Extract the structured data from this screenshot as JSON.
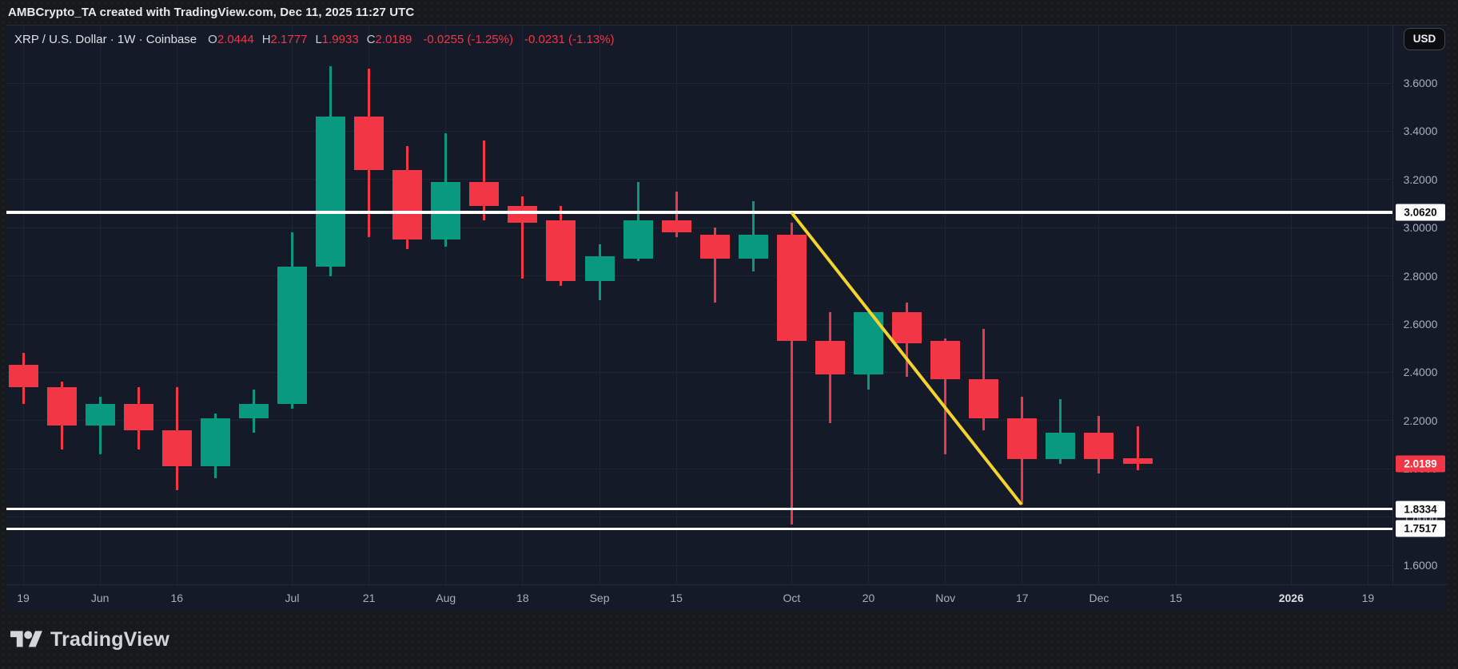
{
  "header": {
    "attribution": "AMBCrypto_TA created with TradingView.com, Dec 11, 2025 11:27 UTC"
  },
  "toolbar": {
    "currency_button": "USD"
  },
  "legend": {
    "symbol_title": "XRP / U.S. Dollar · 1W · Coinbase",
    "ohlc": [
      {
        "label": "O",
        "value": "2.0444"
      },
      {
        "label": "H",
        "value": "2.1777"
      },
      {
        "label": "L",
        "value": "1.9933"
      },
      {
        "label": "C",
        "value": "2.0189"
      }
    ],
    "change_1": "-0.0255 (-1.25%)",
    "change_2": "-0.0231 (-1.13%)"
  },
  "footer": {
    "brand": "TradingView"
  },
  "colors": {
    "up": "#089981",
    "down": "#f23645",
    "trendline": "#f5d32d",
    "price_line": "#ffffff",
    "last_price_bg": "#f23645",
    "chart_bg": "#141a28",
    "outer_bg": "#18191c"
  },
  "chart_data": {
    "type": "candlestick",
    "symbol": "XRP/USD",
    "timeframe": "1W",
    "exchange": "Coinbase",
    "price_axis": {
      "min": 1.6,
      "max": 3.6,
      "step": 0.2,
      "grid": true
    },
    "y_ticks": [
      {
        "label": "3.6000",
        "price": 3.6
      },
      {
        "label": "3.4000",
        "price": 3.4
      },
      {
        "label": "3.2000",
        "price": 3.2
      },
      {
        "label": "3.0000",
        "price": 3.0
      },
      {
        "label": "2.8000",
        "price": 2.8
      },
      {
        "label": "2.6000",
        "price": 2.6
      },
      {
        "label": "2.4000",
        "price": 2.4
      },
      {
        "label": "2.2000",
        "price": 2.2
      },
      {
        "label": "2.0000",
        "price": 2.0
      },
      {
        "label": "1.8000",
        "price": 1.8
      },
      {
        "label": "1.6000",
        "price": 1.6
      }
    ],
    "x_ticks": [
      {
        "label": "19",
        "week": 0,
        "major": false
      },
      {
        "label": "Jun",
        "week": 2,
        "major": false
      },
      {
        "label": "16",
        "week": 4,
        "major": false
      },
      {
        "label": "Jul",
        "week": 7,
        "major": false
      },
      {
        "label": "21",
        "week": 9,
        "major": false
      },
      {
        "label": "Aug",
        "week": 11,
        "major": false
      },
      {
        "label": "18",
        "week": 13,
        "major": false
      },
      {
        "label": "Sep",
        "week": 15,
        "major": false
      },
      {
        "label": "15",
        "week": 17,
        "major": false
      },
      {
        "label": "Oct",
        "week": 20,
        "major": false
      },
      {
        "label": "20",
        "week": 22,
        "major": false
      },
      {
        "label": "Nov",
        "week": 24,
        "major": false
      },
      {
        "label": "17",
        "week": 26,
        "major": false
      },
      {
        "label": "Dec",
        "week": 28,
        "major": false
      },
      {
        "label": "15",
        "week": 30,
        "major": false
      },
      {
        "label": "2026",
        "week": 33,
        "major": true
      },
      {
        "label": "19",
        "week": 35,
        "major": false
      }
    ],
    "candles": [
      {
        "date": "May 19",
        "o": 2.43,
        "h": 2.48,
        "l": 2.27,
        "c": 2.34
      },
      {
        "date": "May 26",
        "o": 2.34,
        "h": 2.36,
        "l": 2.08,
        "c": 2.18
      },
      {
        "date": "Jun 2",
        "o": 2.18,
        "h": 2.3,
        "l": 2.06,
        "c": 2.27
      },
      {
        "date": "Jun 9",
        "o": 2.27,
        "h": 2.34,
        "l": 2.08,
        "c": 2.16
      },
      {
        "date": "Jun 16",
        "o": 2.16,
        "h": 2.34,
        "l": 1.91,
        "c": 2.01
      },
      {
        "date": "Jun 23",
        "o": 2.01,
        "h": 2.23,
        "l": 1.96,
        "c": 2.21
      },
      {
        "date": "Jun 30",
        "o": 2.21,
        "h": 2.33,
        "l": 2.15,
        "c": 2.27
      },
      {
        "date": "Jul 7",
        "o": 2.27,
        "h": 2.98,
        "l": 2.25,
        "c": 2.84
      },
      {
        "date": "Jul 14",
        "o": 2.84,
        "h": 3.67,
        "l": 2.8,
        "c": 3.46
      },
      {
        "date": "Jul 21",
        "o": 3.46,
        "h": 3.66,
        "l": 2.96,
        "c": 3.24
      },
      {
        "date": "Jul 28",
        "o": 3.24,
        "h": 3.34,
        "l": 2.91,
        "c": 2.95
      },
      {
        "date": "Aug 4",
        "o": 2.95,
        "h": 3.39,
        "l": 2.92,
        "c": 3.19
      },
      {
        "date": "Aug 11",
        "o": 3.19,
        "h": 3.36,
        "l": 3.03,
        "c": 3.09
      },
      {
        "date": "Aug 18",
        "o": 3.09,
        "h": 3.13,
        "l": 2.79,
        "c": 3.02
      },
      {
        "date": "Aug 25",
        "o": 3.03,
        "h": 3.09,
        "l": 2.76,
        "c": 2.78
      },
      {
        "date": "Sep 1",
        "o": 2.78,
        "h": 2.93,
        "l": 2.7,
        "c": 2.88
      },
      {
        "date": "Sep 8",
        "o": 2.87,
        "h": 3.19,
        "l": 2.86,
        "c": 3.03
      },
      {
        "date": "Sep 15",
        "o": 3.03,
        "h": 3.15,
        "l": 2.96,
        "c": 2.98
      },
      {
        "date": "Sep 22",
        "o": 2.97,
        "h": 3.0,
        "l": 2.69,
        "c": 2.87
      },
      {
        "date": "Sep 29",
        "o": 2.87,
        "h": 3.11,
        "l": 2.82,
        "c": 2.97
      },
      {
        "date": "Oct 6",
        "o": 2.97,
        "h": 3.02,
        "l": 1.77,
        "c": 2.53
      },
      {
        "date": "Oct 13",
        "o": 2.53,
        "h": 2.65,
        "l": 2.19,
        "c": 2.39
      },
      {
        "date": "Oct 20",
        "o": 2.39,
        "h": 2.65,
        "l": 2.33,
        "c": 2.65
      },
      {
        "date": "Oct 27",
        "o": 2.65,
        "h": 2.69,
        "l": 2.38,
        "c": 2.52
      },
      {
        "date": "Nov 3",
        "o": 2.53,
        "h": 2.54,
        "l": 2.06,
        "c": 2.37
      },
      {
        "date": "Nov 10",
        "o": 2.37,
        "h": 2.58,
        "l": 2.16,
        "c": 2.21
      },
      {
        "date": "Nov 17",
        "o": 2.21,
        "h": 2.3,
        "l": 1.85,
        "c": 2.04
      },
      {
        "date": "Nov 24",
        "o": 2.04,
        "h": 2.29,
        "l": 2.02,
        "c": 2.15
      },
      {
        "date": "Dec 1",
        "o": 2.15,
        "h": 2.22,
        "l": 1.98,
        "c": 2.04
      },
      {
        "date": "Dec 8",
        "o": 2.0444,
        "h": 2.1777,
        "l": 1.9933,
        "c": 2.0189
      }
    ],
    "price_lines": [
      {
        "price": 3.062,
        "label": "3.0620",
        "thickness": 4
      },
      {
        "price": 1.8334,
        "label": "1.8334",
        "thickness": 3
      },
      {
        "price": 1.7517,
        "label": "1.7517",
        "thickness": 3
      }
    ],
    "last_price": {
      "price": 2.0189,
      "label": "2.0189"
    },
    "trendline": {
      "week1": 20,
      "price1": 3.062,
      "week2": 26,
      "price2": 1.848
    },
    "title": "",
    "legend_position": "top-left"
  }
}
